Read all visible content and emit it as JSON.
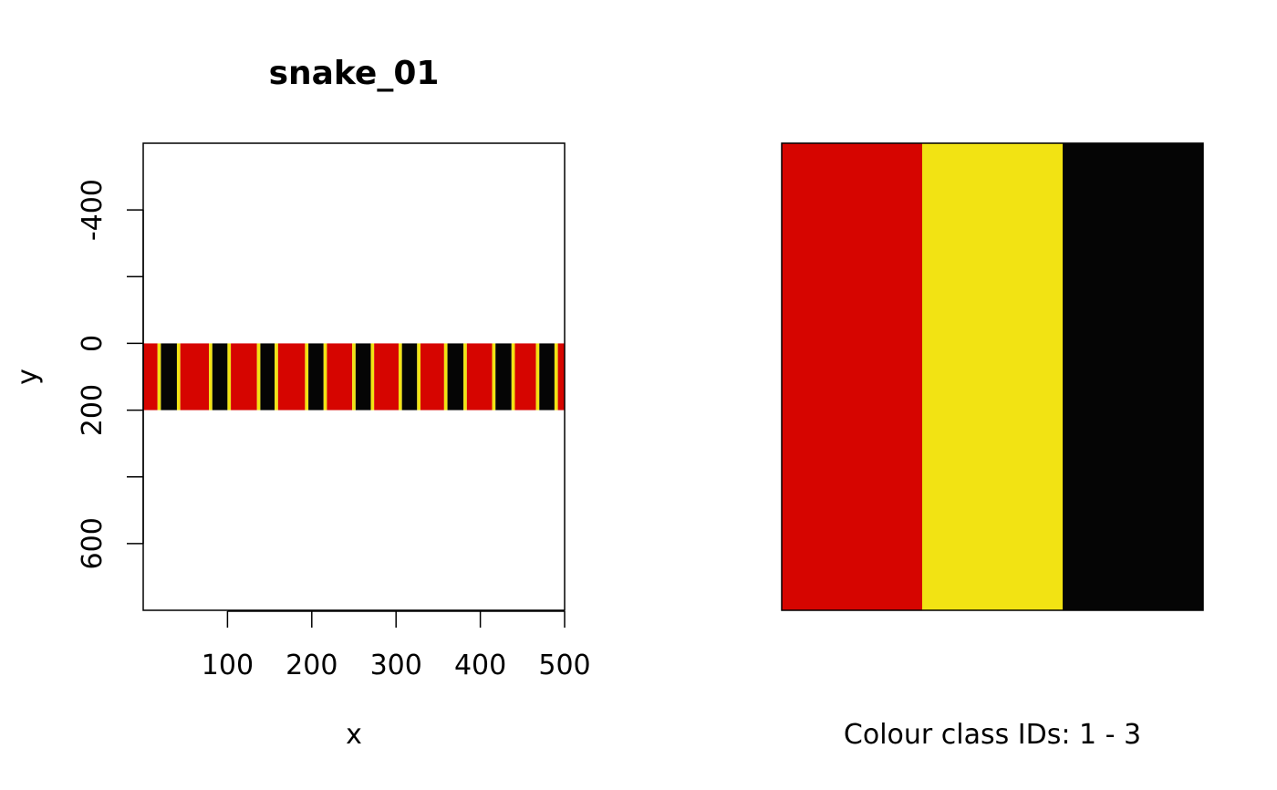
{
  "chart_data": [
    {
      "type": "heatmap",
      "title": "snake_01",
      "xlabel": "x",
      "ylabel": "y",
      "xlim": [
        0,
        500
      ],
      "ylim": [
        800,
        -600
      ],
      "y_reversed": true,
      "x_ticks": [
        100,
        200,
        300,
        400,
        500
      ],
      "x_tick_labels": [
        "100",
        "200",
        "300",
        "400",
        "500"
      ],
      "y_ticks": [
        -400,
        -200,
        0,
        200,
        400,
        600
      ],
      "y_tick_labels": [
        "-400",
        "",
        "0",
        "200",
        "",
        "600"
      ],
      "band": {
        "y_top": 0,
        "y_bottom": 200
      },
      "colors": {
        "1": "#d60500",
        "2": "#f2e313",
        "3": "#050505"
      },
      "segments": [
        {
          "class": 1,
          "x0": 0,
          "x1": 17
        },
        {
          "class": 2,
          "x0": 17,
          "x1": 21
        },
        {
          "class": 3,
          "x0": 21,
          "x1": 40
        },
        {
          "class": 2,
          "x0": 40,
          "x1": 44
        },
        {
          "class": 1,
          "x0": 44,
          "x1": 78
        },
        {
          "class": 2,
          "x0": 78,
          "x1": 82
        },
        {
          "class": 3,
          "x0": 82,
          "x1": 100
        },
        {
          "class": 2,
          "x0": 100,
          "x1": 104
        },
        {
          "class": 1,
          "x0": 104,
          "x1": 135
        },
        {
          "class": 2,
          "x0": 135,
          "x1": 139
        },
        {
          "class": 3,
          "x0": 139,
          "x1": 156
        },
        {
          "class": 2,
          "x0": 156,
          "x1": 160
        },
        {
          "class": 1,
          "x0": 160,
          "x1": 192
        },
        {
          "class": 2,
          "x0": 192,
          "x1": 196
        },
        {
          "class": 3,
          "x0": 196,
          "x1": 214
        },
        {
          "class": 2,
          "x0": 214,
          "x1": 218
        },
        {
          "class": 1,
          "x0": 218,
          "x1": 248
        },
        {
          "class": 2,
          "x0": 248,
          "x1": 252
        },
        {
          "class": 3,
          "x0": 252,
          "x1": 270
        },
        {
          "class": 2,
          "x0": 270,
          "x1": 274
        },
        {
          "class": 1,
          "x0": 274,
          "x1": 303
        },
        {
          "class": 2,
          "x0": 303,
          "x1": 307
        },
        {
          "class": 3,
          "x0": 307,
          "x1": 325
        },
        {
          "class": 2,
          "x0": 325,
          "x1": 329
        },
        {
          "class": 1,
          "x0": 329,
          "x1": 357
        },
        {
          "class": 2,
          "x0": 357,
          "x1": 361
        },
        {
          "class": 3,
          "x0": 361,
          "x1": 380
        },
        {
          "class": 2,
          "x0": 380,
          "x1": 384
        },
        {
          "class": 1,
          "x0": 384,
          "x1": 414
        },
        {
          "class": 2,
          "x0": 414,
          "x1": 418
        },
        {
          "class": 3,
          "x0": 418,
          "x1": 437
        },
        {
          "class": 2,
          "x0": 437,
          "x1": 441
        },
        {
          "class": 1,
          "x0": 441,
          "x1": 466
        },
        {
          "class": 2,
          "x0": 466,
          "x1": 470
        },
        {
          "class": 3,
          "x0": 470,
          "x1": 488
        },
        {
          "class": 2,
          "x0": 488,
          "x1": 492
        },
        {
          "class": 1,
          "x0": 492,
          "x1": 500
        }
      ]
    },
    {
      "type": "heatmap",
      "xlabel": "Colour class IDs: 1 - 3",
      "classes": [
        1,
        2,
        3
      ],
      "colors": [
        "#d60500",
        "#f2e313",
        "#050505"
      ]
    }
  ]
}
